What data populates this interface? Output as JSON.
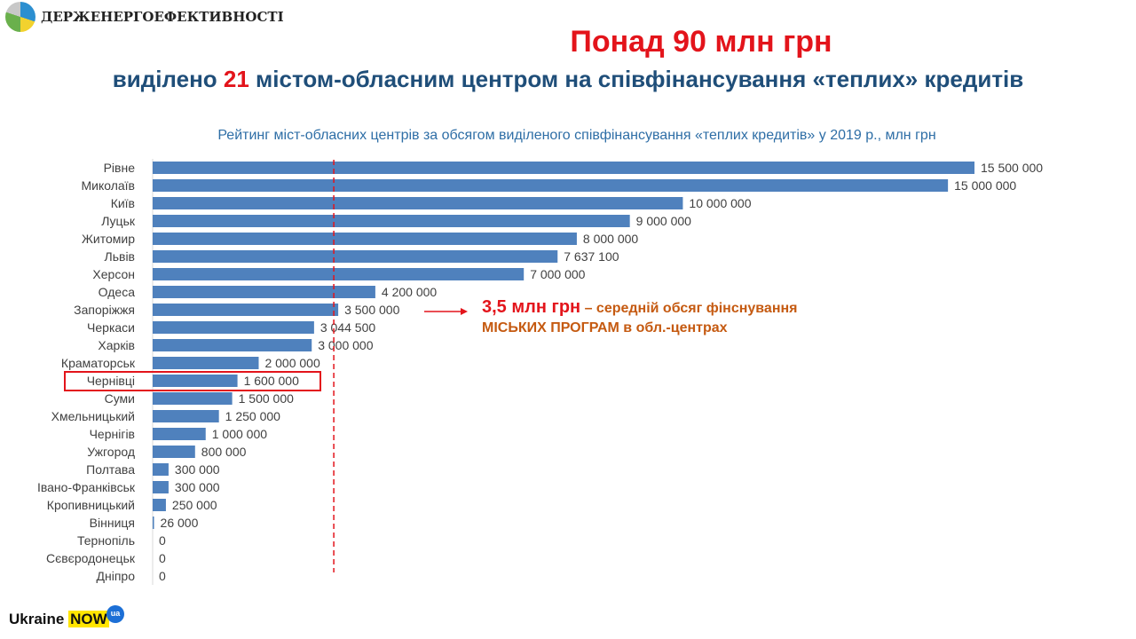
{
  "logo": {
    "text": "ДЕРЖЕНЕРГОЕФЕКТИВНОСТІ"
  },
  "title": "Понад 90 млн грн",
  "subtitle": {
    "pre": "виділено ",
    "num": "21",
    "post": " містом-обласним центром на співфінансування «теплих» кредитів"
  },
  "annotation": {
    "highlight": "3,5 млн грн",
    "rest": " – середній обсяг фінснування",
    "line2": "МІСЬКИХ ПРОГРАМ в обл.-центрах"
  },
  "footer_logo": {
    "text": "Ukraine",
    "now": "NOW",
    "ua": "ua"
  },
  "colors": {
    "bar": "#4f81bd",
    "accent": "#e3141b"
  },
  "chart_data": {
    "type": "bar",
    "orientation": "horizontal",
    "title": "Рейтинг міст-обласних центрів за обсягом виділеного співфінансування «теплих кредитів» у 2019 р., млн грн",
    "categories": [
      "Рівне",
      "Миколаїв",
      "Київ",
      "Луцьк",
      "Житомир",
      "Львів",
      "Херсон",
      "Одеса",
      "Запоріжжя",
      "Черкаси",
      "Харків",
      "Краматорськ",
      "Чернівці",
      "Суми",
      "Хмельницький",
      "Чернігів",
      "Ужгород",
      "Полтава",
      "Івано-Франківськ",
      "Кропивницький",
      "Вінниця",
      "Тернопіль",
      "Сєвєродонецьк",
      "Дніпро"
    ],
    "values": [
      15500000,
      15000000,
      10000000,
      9000000,
      8000000,
      7637100,
      7000000,
      4200000,
      3500000,
      3044500,
      3000000,
      2000000,
      1600000,
      1500000,
      1250000,
      1000000,
      800000,
      300000,
      300000,
      250000,
      26000,
      0,
      0,
      0
    ],
    "labels": [
      "15 500 000",
      "15 000 000",
      "10 000 000",
      "9 000 000",
      "8 000 000",
      "7 637 100",
      "7 000 000",
      "4 200 000",
      "3 500 000",
      "3 044 500",
      "3 000 000",
      "2 000 000",
      "1 600 000",
      "1 500 000",
      "1 250 000",
      "1 000 000",
      "800 000",
      "300 000",
      "300 000",
      "250 000",
      "26 000",
      "0",
      "0",
      "0"
    ],
    "reference_line": 3500000,
    "highlighted": "Чернівці",
    "xlim": [
      0,
      15500000
    ]
  }
}
